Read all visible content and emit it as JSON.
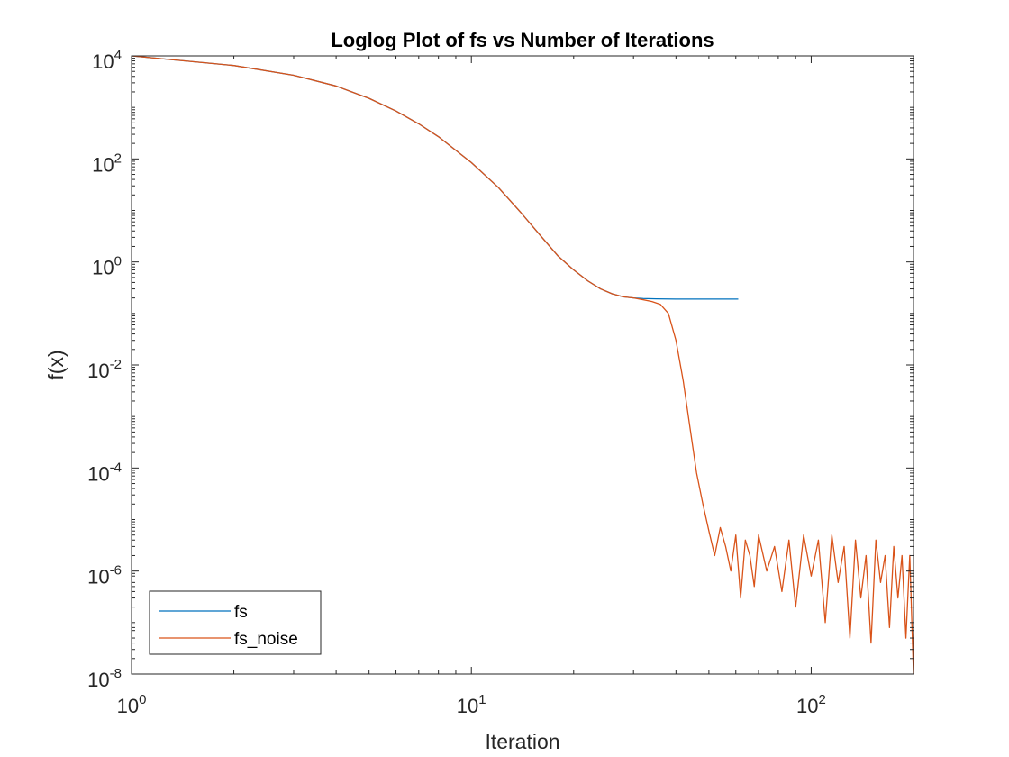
{
  "chart_data": {
    "type": "line",
    "title": "Loglog Plot of fs vs  Number of Iterations",
    "xlabel": "Iteration",
    "ylabel": "f(x)",
    "xscale": "log",
    "yscale": "log",
    "xlim": [
      1,
      200
    ],
    "ylim": [
      1e-08,
      10000
    ],
    "x_ticks": [
      {
        "value": 1,
        "base": "10",
        "exp": "0"
      },
      {
        "value": 10,
        "base": "10",
        "exp": "1"
      },
      {
        "value": 100,
        "base": "10",
        "exp": "2"
      }
    ],
    "y_ticks": [
      {
        "value": 1e-08,
        "base": "10",
        "exp": "-8"
      },
      {
        "value": 1e-06,
        "base": "10",
        "exp": "-6"
      },
      {
        "value": 0.0001,
        "base": "10",
        "exp": "-4"
      },
      {
        "value": 0.01,
        "base": "10",
        "exp": "-2"
      },
      {
        "value": 1,
        "base": "10",
        "exp": "0"
      },
      {
        "value": 100,
        "base": "10",
        "exp": "2"
      },
      {
        "value": 10000,
        "base": "10",
        "exp": "4"
      }
    ],
    "grid": false,
    "legend_position": "bottom-left",
    "series": [
      {
        "name": "fs",
        "color": "#0072BD",
        "x": [
          1,
          2,
          3,
          4,
          5,
          6,
          7,
          8,
          10,
          12,
          14,
          16,
          18,
          20,
          22,
          24,
          26,
          28,
          30,
          32,
          35,
          40,
          45,
          50,
          55,
          60,
          61
        ],
        "y": [
          10000,
          6500,
          4200,
          2600,
          1500,
          850,
          480,
          270,
          85,
          28,
          9,
          3.2,
          1.3,
          0.7,
          0.43,
          0.3,
          0.24,
          0.21,
          0.2,
          0.195,
          0.192,
          0.19,
          0.19,
          0.19,
          0.19,
          0.19,
          0.19
        ]
      },
      {
        "name": "fs_noise",
        "color": "#D95319",
        "x": [
          1,
          2,
          3,
          4,
          5,
          6,
          7,
          8,
          10,
          12,
          14,
          16,
          18,
          20,
          22,
          24,
          26,
          28,
          30,
          32,
          34,
          36,
          38,
          40,
          42,
          44,
          46,
          48,
          50,
          52,
          54,
          56,
          58,
          60,
          62,
          64,
          66,
          68,
          70,
          74,
          78,
          82,
          86,
          90,
          95,
          100,
          105,
          110,
          115,
          120,
          125,
          130,
          135,
          140,
          145,
          150,
          155,
          160,
          165,
          170,
          175,
          180,
          185,
          190,
          195,
          200
        ],
        "y": [
          10000,
          6500,
          4200,
          2600,
          1500,
          850,
          480,
          270,
          85,
          28,
          9,
          3.2,
          1.3,
          0.7,
          0.43,
          0.3,
          0.24,
          0.21,
          0.2,
          0.185,
          0.17,
          0.15,
          0.1,
          0.03,
          0.005,
          0.0006,
          8e-05,
          2e-05,
          6e-06,
          2e-06,
          7e-06,
          3e-06,
          1e-06,
          5e-06,
          3e-07,
          4e-06,
          2e-06,
          5e-07,
          5e-06,
          1e-06,
          3e-06,
          4e-07,
          4e-06,
          2e-07,
          5e-06,
          8e-07,
          4e-06,
          1e-07,
          5e-06,
          6e-07,
          3e-06,
          5e-08,
          4e-06,
          3e-07,
          2e-06,
          4e-08,
          4e-06,
          6e-07,
          2e-06,
          8e-08,
          3e-06,
          3e-07,
          2e-06,
          5e-08,
          2e-06,
          1e-08
        ]
      }
    ]
  }
}
